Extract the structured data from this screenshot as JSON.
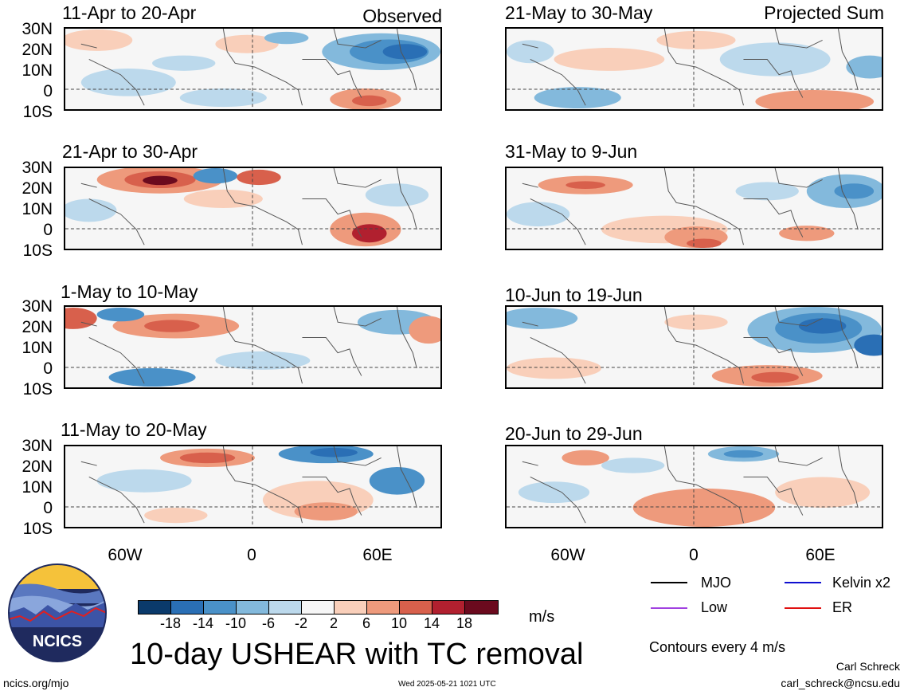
{
  "panels": [
    {
      "title": "11-Apr to 20-Apr",
      "tag": "Observed"
    },
    {
      "title": "21-Apr to 30-Apr",
      "tag": ""
    },
    {
      "title": "1-May to 10-May",
      "tag": ""
    },
    {
      "title": "11-May to 20-May",
      "tag": ""
    },
    {
      "title": "21-May to 30-May",
      "tag": "Projected Sum"
    },
    {
      "title": "31-May to 9-Jun",
      "tag": ""
    },
    {
      "title": "10-Jun to 19-Jun",
      "tag": ""
    },
    {
      "title": "20-Jun to 29-Jun",
      "tag": ""
    }
  ],
  "lat_labels": [
    "30N",
    "20N",
    "10N",
    "0",
    "10S"
  ],
  "lon_labels": [
    "60W",
    "0",
    "60E"
  ],
  "colorbar": {
    "labels": [
      "-18",
      "-14",
      "-10",
      "-6",
      "-2",
      "2",
      "6",
      "10",
      "14",
      "18"
    ],
    "colors": [
      "#0b3a6b",
      "#2a6fb5",
      "#4a91c8",
      "#83b9dc",
      "#bcd9ec",
      "#f6f6f6",
      "#f9cfba",
      "#ee9a7c",
      "#d8604c",
      "#b1202f",
      "#6b0a1e"
    ],
    "units": "m/s"
  },
  "legend": {
    "mjo": "MJO",
    "kelvin": "Kelvin x2",
    "low": "Low",
    "er": "ER",
    "colors": {
      "mjo": "#000000",
      "kelvin": "#1010d0",
      "low": "#a040e0",
      "er": "#e01010"
    },
    "contours_note": "Contours every 4 m/s"
  },
  "logo_text": "NCICS",
  "main_title": "10-day USHEAR with TC removal",
  "footer": {
    "url": "ncics.org/mjo",
    "timestamp": "Wed 2025-05-21 1021 UTC",
    "author": "Carl Schreck",
    "email": "carl_schreck@ncsu.edu"
  }
}
